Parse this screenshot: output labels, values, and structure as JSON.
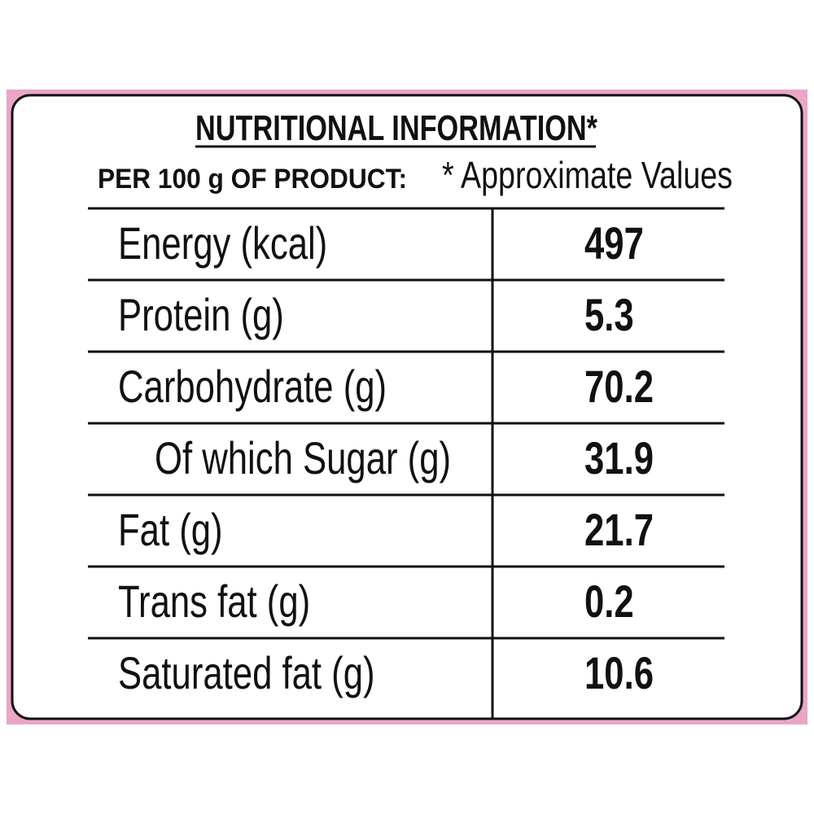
{
  "header": {
    "title": "NUTRITIONAL INFORMATION*",
    "basis": "PER 100 g OF PRODUCT:",
    "note": "* Approximate Values"
  },
  "table": {
    "rows": [
      [
        "Energy (kcal)",
        "497"
      ],
      [
        "Protein (g)",
        "5.3"
      ],
      [
        "Carbohydrate (g)",
        "70.2"
      ],
      [
        "Of which Sugar (g)",
        "31.9"
      ],
      [
        "Fat (g)",
        "21.7"
      ],
      [
        "Trans fat (g)",
        "0.2"
      ],
      [
        "Saturated fat (g)",
        "10.6"
      ]
    ]
  }
}
